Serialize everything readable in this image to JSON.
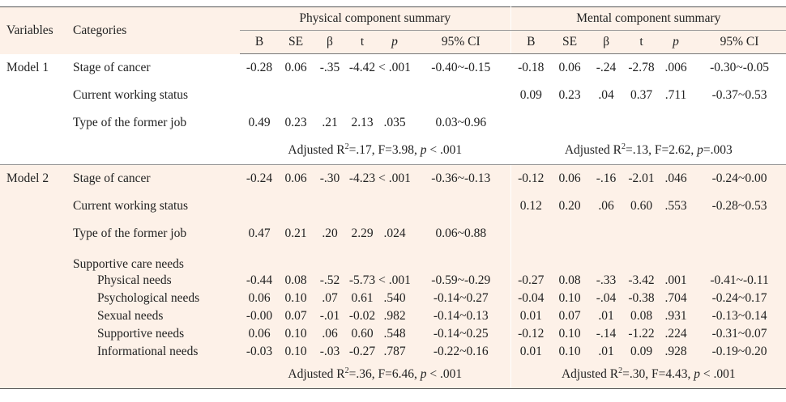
{
  "header": {
    "variables": "Variables",
    "categories": "Categories",
    "physical": "Physical component summary",
    "mental": "Mental component summary",
    "cols": [
      "B",
      "SE",
      "β",
      "t",
      "p",
      "95%  CI"
    ]
  },
  "models": [
    {
      "label": "Model 1",
      "rows": [
        {
          "cat": "Stage of cancer",
          "sub": false,
          "pcs": [
            "-0.28",
            "0.06",
            "-.35",
            "-4.42",
            "< .001",
            "-0.40~-0.15"
          ],
          "mcs": [
            "-0.18",
            "0.06",
            "-.24",
            "-2.78",
            ".006",
            "-0.30~-0.05"
          ]
        },
        {
          "cat": "Current working status",
          "sub": false,
          "pcs": [
            "",
            "",
            "",
            "",
            "",
            ""
          ],
          "mcs": [
            "0.09",
            "0.23",
            ".04",
            "0.37",
            ".711",
            "-0.37~0.53"
          ]
        },
        {
          "cat": "Type of the former job",
          "sub": false,
          "pcs": [
            "0.49",
            "0.23",
            ".21",
            "2.13",
            ".035",
            "0.03~0.96"
          ],
          "mcs": [
            "",
            "",
            "",
            "",
            "",
            ""
          ]
        }
      ],
      "adj_pcs": {
        "pre": "Adjusted R",
        "sup": "2",
        "mid": "=.17,  F=3.98,  ",
        "p": "p",
        "post": " < .001"
      },
      "adj_mcs": {
        "pre": "Adjusted R",
        "sup": "2",
        "mid": "=.13,  F=2.62,  ",
        "p": "p",
        "post": "=.003"
      }
    },
    {
      "label": "Model 2",
      "rows": [
        {
          "cat": "Stage of cancer",
          "sub": false,
          "pcs": [
            "-0.24",
            "0.06",
            "-.30",
            "-4.23",
            "< .001",
            "-0.36~-0.13"
          ],
          "mcs": [
            "-0.12",
            "0.06",
            "-.16",
            "-2.01",
            ".046",
            "-0.24~0.00"
          ]
        },
        {
          "cat": "Current working status",
          "sub": false,
          "pcs": [
            "",
            "",
            "",
            "",
            "",
            ""
          ],
          "mcs": [
            "0.12",
            "0.20",
            ".06",
            "0.60",
            ".553",
            "-0.28~0.53"
          ]
        },
        {
          "cat": "Type of the former job",
          "sub": false,
          "pcs": [
            "0.47",
            "0.21",
            ".20",
            "2.29",
            ".024",
            "0.06~0.88"
          ],
          "mcs": [
            "",
            "",
            "",
            "",
            "",
            ""
          ]
        },
        {
          "cat": "Supportive care needs",
          "sub": false,
          "head": true,
          "pcs": [
            "",
            "",
            "",
            "",
            "",
            ""
          ],
          "mcs": [
            "",
            "",
            "",
            "",
            "",
            ""
          ]
        },
        {
          "cat": "Physical needs",
          "sub": true,
          "pcs": [
            "-0.44",
            "0.08",
            "-.52",
            "-5.73",
            "< .001",
            "-0.59~-0.29"
          ],
          "mcs": [
            "-0.27",
            "0.08",
            "-.33",
            "-3.42",
            ".001",
            "-0.41~-0.11"
          ]
        },
        {
          "cat": "Psychological needs",
          "sub": true,
          "pcs": [
            "0.06",
            "0.10",
            ".07",
            "0.61",
            ".540",
            "-0.14~0.27"
          ],
          "mcs": [
            "-0.04",
            "0.10",
            "-.04",
            "-0.38",
            ".704",
            "-0.24~0.17"
          ]
        },
        {
          "cat": "Sexual needs",
          "sub": true,
          "pcs": [
            "-0.00",
            "0.07",
            "-.01",
            "-0.02",
            ".982",
            "-0.14~0.13"
          ],
          "mcs": [
            "0.01",
            "0.07",
            ".01",
            "0.08",
            ".931",
            "-0.13~0.14"
          ]
        },
        {
          "cat": "Supportive needs",
          "sub": true,
          "pcs": [
            "0.06",
            "0.10",
            ".06",
            "0.60",
            ".548",
            "-0.14~0.25"
          ],
          "mcs": [
            "-0.12",
            "0.10",
            "-.14",
            "-1.22",
            ".224",
            "-0.31~0.07"
          ]
        },
        {
          "cat": "Informational needs",
          "sub": true,
          "pcs": [
            "-0.03",
            "0.10",
            "-.03",
            "-0.27",
            ".787",
            "-0.22~0.16"
          ],
          "mcs": [
            "0.01",
            "0.10",
            ".01",
            "0.09",
            ".928",
            "-0.19~0.20"
          ]
        }
      ],
      "adj_pcs": {
        "pre": "Adjusted R",
        "sup": "2",
        "mid": "=.36,  F=6.46,  ",
        "p": "p",
        "post": " < .001"
      },
      "adj_mcs": {
        "pre": "Adjusted R",
        "sup": "2",
        "mid": "=.30,  F=4.43,  ",
        "p": "p",
        "post": " < .001"
      }
    }
  ]
}
